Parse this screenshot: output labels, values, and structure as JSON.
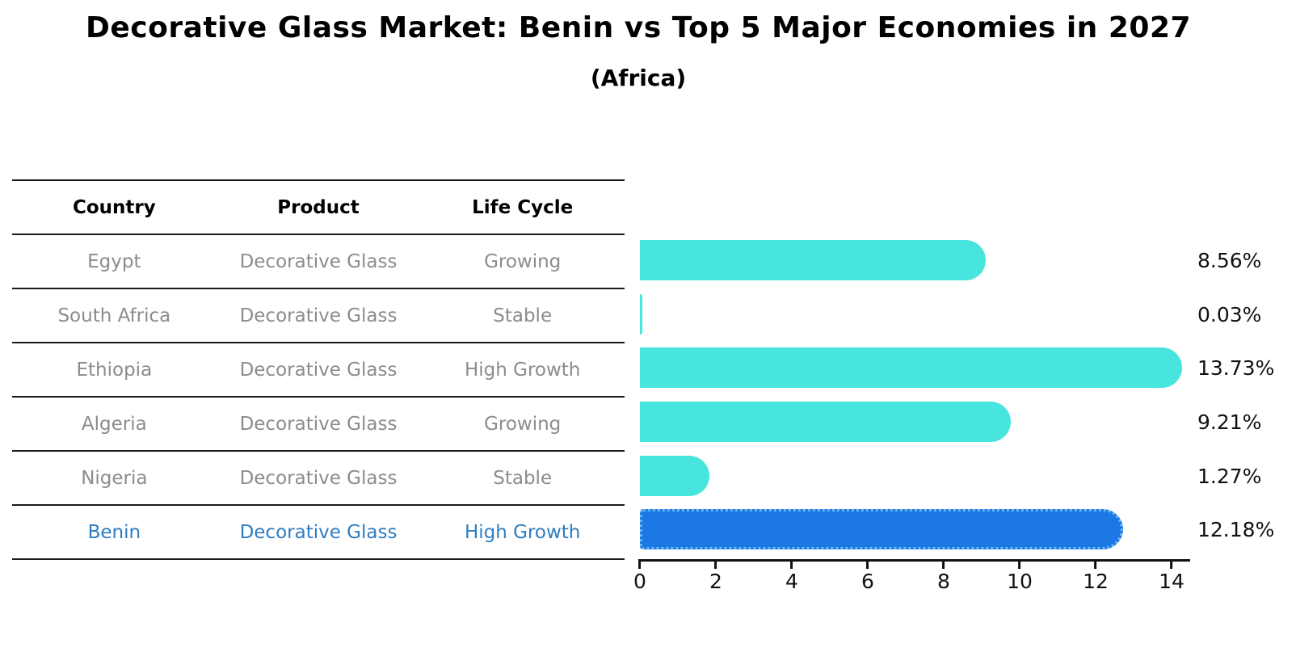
{
  "title": "Decorative Glass Market: Benin vs Top 5 Major Economies in 2027",
  "subtitle": "(Africa)",
  "table": {
    "headers": [
      "Country",
      "Product",
      "Life Cycle"
    ],
    "rows": [
      {
        "country": "Egypt",
        "product": "Decorative Glass",
        "life_cycle": "Growing",
        "highlight": false
      },
      {
        "country": "South Africa",
        "product": "Decorative Glass",
        "life_cycle": "Stable",
        "highlight": false
      },
      {
        "country": "Ethiopia",
        "product": "Decorative Glass",
        "life_cycle": "High Growth",
        "highlight": false
      },
      {
        "country": "Algeria",
        "product": "Decorative Glass",
        "life_cycle": "Growing",
        "highlight": false
      },
      {
        "country": "Nigeria",
        "product": "Decorative Glass",
        "life_cycle": "Stable",
        "highlight": false
      },
      {
        "country": "Benin",
        "product": "Decorative Glass",
        "life_cycle": "High Growth",
        "highlight": true
      }
    ]
  },
  "chart_data": {
    "type": "bar",
    "orientation": "horizontal",
    "title": "Decorative Glass Market: Benin vs Top 5 Major Economies in 2027 (Africa)",
    "categories": [
      "Egypt",
      "South Africa",
      "Ethiopia",
      "Algeria",
      "Nigeria",
      "Benin"
    ],
    "values": [
      8.56,
      0.03,
      13.73,
      9.21,
      1.27,
      12.18
    ],
    "value_labels": [
      "8.56%",
      "0.03%",
      "13.73%",
      "9.21%",
      "1.27%",
      "12.18%"
    ],
    "xlabel": "",
    "ylabel": "",
    "xlim": [
      0,
      14.5
    ],
    "xticks": [
      0,
      2,
      4,
      6,
      8,
      10,
      12,
      14
    ],
    "grid": false,
    "legend": false,
    "bar_color": "#48E4DE",
    "highlight_color": "#1B78E4",
    "highlight_border_color": "#6DB8F2",
    "highlight_index": 5
  },
  "colors": {
    "accent_text": "#2E7CC3",
    "muted_text": "#8C8C8C",
    "line": "#1A1A1A"
  }
}
